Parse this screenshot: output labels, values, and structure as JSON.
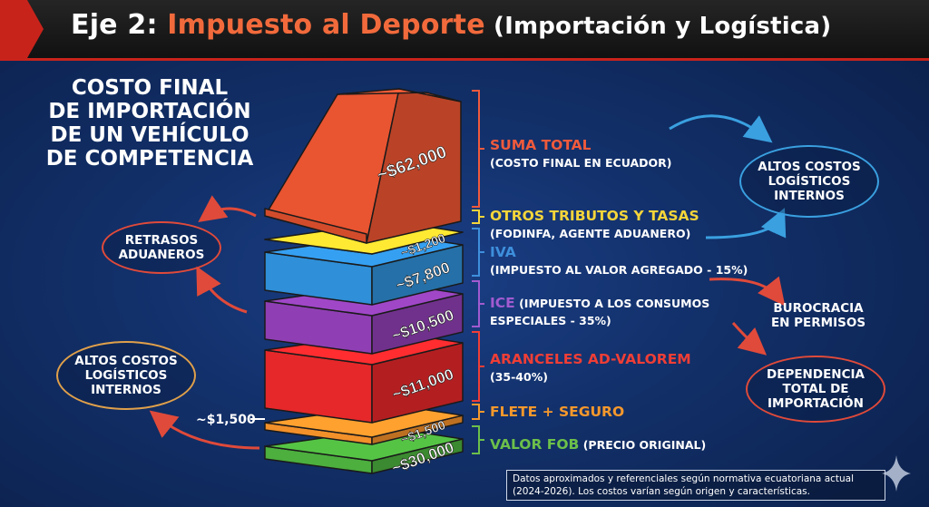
{
  "header": {
    "prefix": "Eje 2: ",
    "title": "Impuesto al Deporte",
    "subtitle": " (Importación y Logística)"
  },
  "heading": [
    "COSTO FINAL",
    "DE IMPORTACIÓN",
    "DE UN VEHÍCULO",
    "DE COMPETENCIA"
  ],
  "layers": [
    {
      "value": "~$62,000",
      "label": "SUMA TOTAL",
      "sub": "(COSTO FINAL EN ECUADOR)",
      "label_color": "#ef5a3c",
      "color": "#e95431"
    },
    {
      "value": "~$1,200",
      "label": "OTROS TRIBUTOS Y TASAS",
      "sub": "(FODINFA, AGENTE ADUANERO)",
      "label_color": "#f5d53a",
      "color": "#f2d02d"
    },
    {
      "value": "~$7,800",
      "label": "IVA",
      "sub": "(IMPUESTO AL VALOR AGREGADO - 15%)",
      "label_color": "#3e8fdc",
      "color": "#2f8fd8"
    },
    {
      "value": "~$10,500",
      "label": "ICE",
      "sub": "(IMPUESTO A LOS CONSUMOS",
      "sub2": "ESPECIALES - 35%)",
      "label_color": "#a15bd0",
      "color": "#8f3fb3"
    },
    {
      "value": "~$11,000",
      "label": "ARANCELES AD-VALOREM",
      "sub": "(35-40%)",
      "label_color": "#ef3e36",
      "color": "#e6282a"
    },
    {
      "value": "~$1,500",
      "label": "FLETE + SEGURO",
      "sub": "",
      "label_color": "#f5982c",
      "color": "#f2902a"
    },
    {
      "value": "~$30,000",
      "label": "VALOR FOB",
      "sub": "(PRECIO ORIGINAL)",
      "label_color": "#6cc04a",
      "color": "#4caf3e"
    }
  ],
  "side_value": "~$1,500",
  "bubbles": {
    "top_right": "ALTOS COSTOS\nLOGÍSTICOS\nINTERNOS",
    "burocracia": "BUROCRACIA\nEN PERMISOS",
    "dependencia": "DEPENDENCIA\nTOTAL DE\nIMPORTACIÓN",
    "retrasos": "RETRASOS\nADUANEROS",
    "bottom_left": "ALTOS COSTOS\nLOGÍSTICOS\nINTERNOS"
  },
  "note": "Datos aproximados y referenciales según normativa ecuatoriana actual (2024-2026). Los costos varían según origen y características.",
  "colors": {
    "accent": "#c8231b",
    "arrow_red": "#e04a3a",
    "arrow_blue": "#3aa0e0"
  },
  "icons": {
    "sparkle": "sparkle-icon"
  }
}
